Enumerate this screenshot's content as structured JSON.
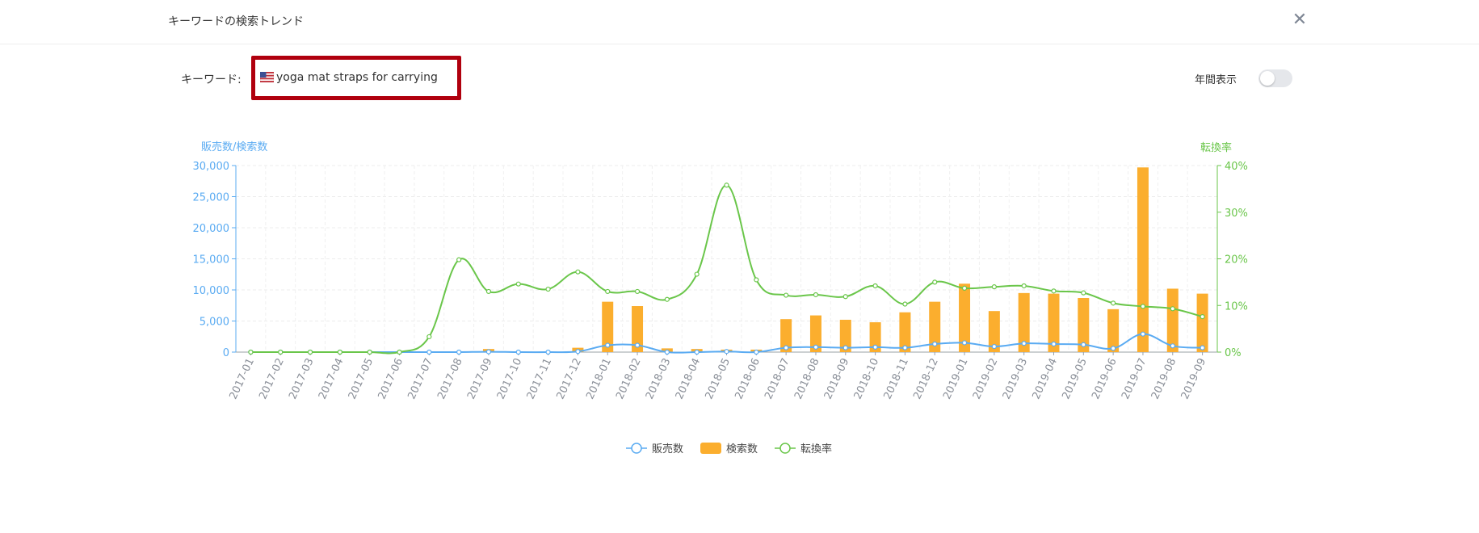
{
  "dialog": {
    "title": "キーワードの検索トレンド",
    "close_label": "✕",
    "keyword_label": "キーワード:",
    "keyword": "yoga mat straps for carrying",
    "keyword_flag": "us-flag-icon",
    "annual_view_label": "年間表示",
    "annual_view_on": false
  },
  "colors": {
    "sales": "#5aabf2",
    "search": "#fbae2e",
    "conversion": "#6ac64a",
    "highlight_border": "#b0000e"
  },
  "chart_data": {
    "type": "bar",
    "y_left_label": "販売数/検索数",
    "y_right_label": "転換率",
    "y_left_ticks": [
      "30,000",
      "25,000",
      "20,000",
      "15,000",
      "10,000",
      "5,000",
      "0"
    ],
    "y_right_ticks": [
      "40%",
      "30%",
      "20%",
      "10%",
      "0%"
    ],
    "ylim_left": [
      0,
      30000
    ],
    "ylim_right": [
      0,
      40
    ],
    "grid": true,
    "legend_position": "bottom",
    "categories": [
      "2017-01",
      "2017-02",
      "2017-03",
      "2017-04",
      "2017-05",
      "2017-06",
      "2017-07",
      "2017-08",
      "2017-09",
      "2017-10",
      "2017-11",
      "2017-12",
      "2018-01",
      "2018-02",
      "2018-03",
      "2018-04",
      "2018-05",
      "2018-06",
      "2018-07",
      "2018-08",
      "2018-09",
      "2018-10",
      "2018-11",
      "2018-12",
      "2019-01",
      "2019-02",
      "2019-03",
      "2019-04",
      "2019-05",
      "2019-06",
      "2019-07",
      "2019-08",
      "2019-09"
    ],
    "series": [
      {
        "name": "販売数",
        "type": "line",
        "axis": "left",
        "values": [
          0,
          0,
          0,
          0,
          0,
          0,
          0,
          0,
          50,
          0,
          0,
          100,
          1100,
          1100,
          0,
          0,
          100,
          0,
          700,
          800,
          700,
          800,
          700,
          1300,
          1500,
          900,
          1400,
          1300,
          1200,
          600,
          2900,
          1000,
          700
        ]
      },
      {
        "name": "検索数",
        "type": "bar",
        "axis": "left",
        "values": [
          0,
          0,
          0,
          0,
          0,
          0,
          0,
          0,
          500,
          0,
          0,
          700,
          8100,
          7400,
          600,
          500,
          400,
          400,
          5300,
          5900,
          5200,
          4800,
          6400,
          8100,
          11000,
          6600,
          9500,
          9400,
          8700,
          6900,
          29700,
          10200,
          9400
        ]
      },
      {
        "name": "転換率",
        "type": "line",
        "axis": "right",
        "values": [
          0,
          0,
          0,
          0,
          0,
          0,
          3.3,
          19.8,
          13,
          14.6,
          13.5,
          17.2,
          13,
          13,
          11.3,
          16.7,
          35.8,
          15.5,
          12.2,
          12.3,
          11.9,
          14.2,
          10.3,
          15,
          13.7,
          14,
          14.2,
          13.1,
          12.7,
          10.5,
          9.8,
          9.3,
          7.6
        ]
      }
    ]
  }
}
